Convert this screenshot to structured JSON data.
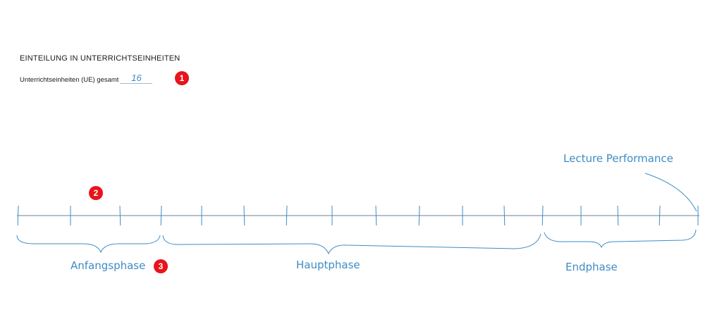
{
  "header": {
    "title": "EINTEILUNG IN UNTERRICHTSEINHEITEN",
    "ue_label": "Unterrichtseinheiten (UE) gesamt",
    "ue_value": "16"
  },
  "markers": [
    "1",
    "2",
    "3"
  ],
  "timeline": {
    "total_units": 16,
    "phases": [
      {
        "label": "Anfangsphase",
        "start": 0,
        "end": 3
      },
      {
        "label": "Hauptphase",
        "start": 3,
        "end": 12
      },
      {
        "label": "Endphase",
        "start": 12,
        "end": 16
      }
    ],
    "annotation": "Lecture Performance"
  },
  "colors": {
    "ink": "#3d8cc4",
    "axis": "#8a9aa8",
    "badge": "#e8141b"
  }
}
